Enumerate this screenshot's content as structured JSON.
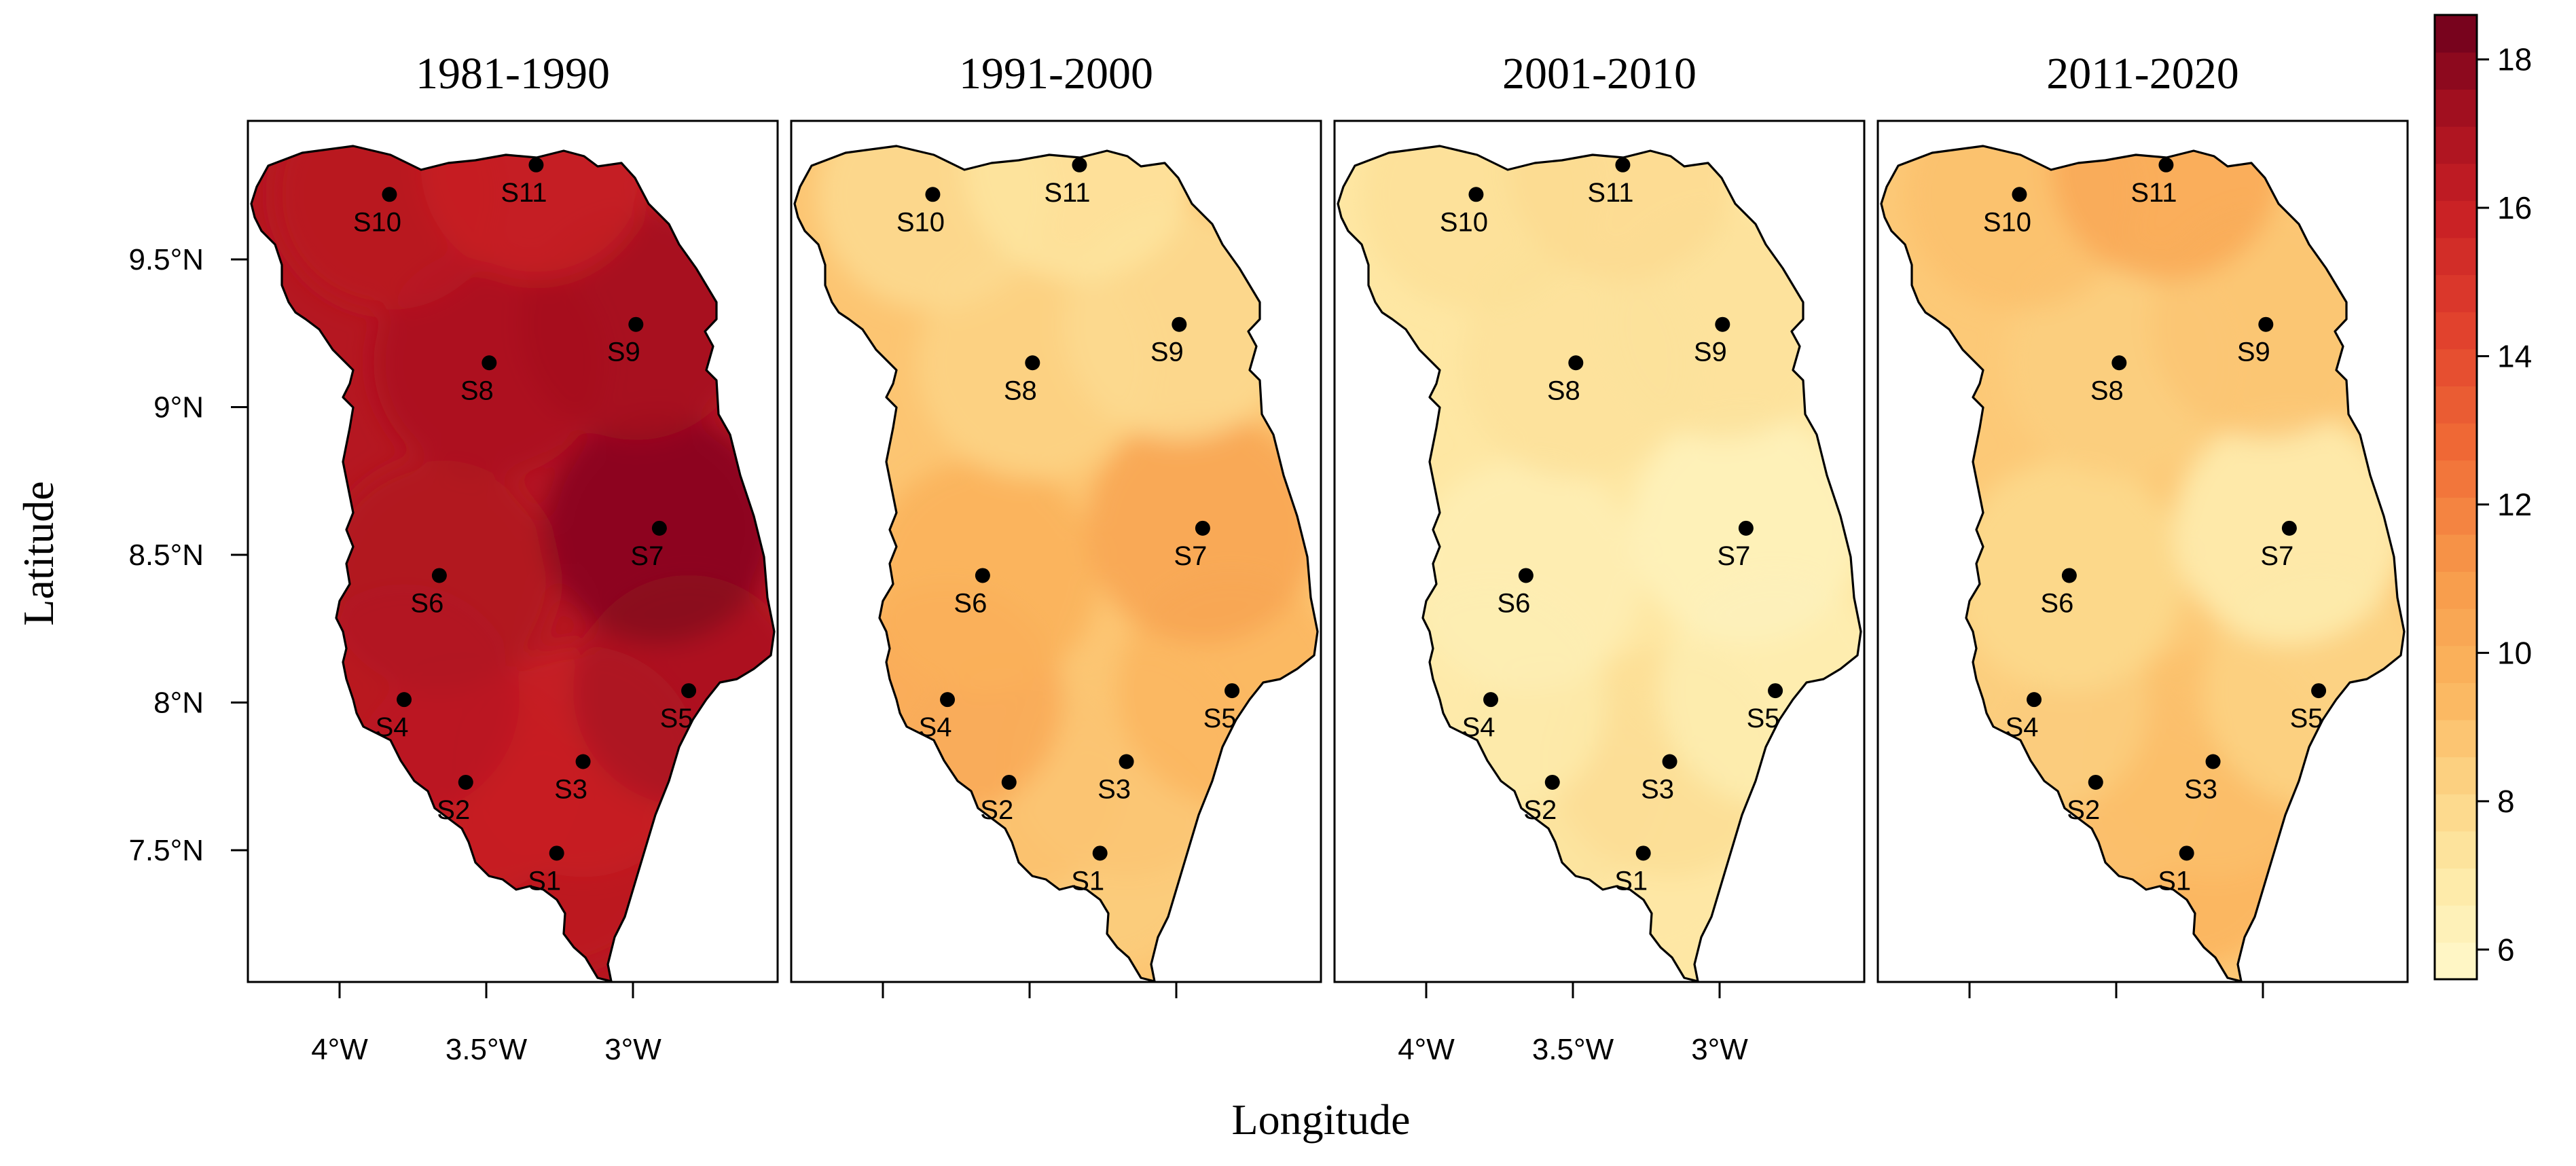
{
  "figure": {
    "xlabel": "Longitude",
    "ylabel": "Latitude",
    "panel_titles": [
      "1981-1990",
      "1991-2000",
      "2001-2010",
      "2011-2020"
    ],
    "x_ticks": [
      "4°W",
      "3.5°W",
      "3°W"
    ],
    "y_ticks": [
      "9.5°N",
      "9°N",
      "8.5°N",
      "8°N",
      "7.5°N"
    ],
    "colorbar_ticks": [
      "6",
      "8",
      "10",
      "12",
      "14",
      "16",
      "18"
    ]
  },
  "chart_data": {
    "type": "heatmap",
    "title": "",
    "xlabel": "Longitude",
    "ylabel": "Latitude",
    "xlim": [
      -4.3,
      -2.5
    ],
    "ylim": [
      7.05,
      9.95
    ],
    "color_scale": {
      "range": [
        5.6,
        18.6
      ],
      "step": 0.5,
      "low_color": "#fff7c8",
      "mid_color": "#f7a64b",
      "high_color": "#7a0020"
    },
    "stations": [
      {
        "name": "S1",
        "lon": -3.26,
        "lat": 7.49
      },
      {
        "name": "S2",
        "lon": -3.57,
        "lat": 7.73
      },
      {
        "name": "S3",
        "lon": -3.17,
        "lat": 7.8
      },
      {
        "name": "S4",
        "lon": -3.78,
        "lat": 8.01
      },
      {
        "name": "S5",
        "lon": -2.81,
        "lat": 8.04
      },
      {
        "name": "S6",
        "lon": -3.66,
        "lat": 8.43
      },
      {
        "name": "S7",
        "lon": -2.91,
        "lat": 8.59
      },
      {
        "name": "S8",
        "lon": -3.49,
        "lat": 9.15
      },
      {
        "name": "S9",
        "lon": -2.99,
        "lat": 9.28
      },
      {
        "name": "S10",
        "lon": -3.83,
        "lat": 9.72
      },
      {
        "name": "S11",
        "lon": -3.33,
        "lat": 9.82
      }
    ],
    "panels": [
      {
        "title": "1981-1990",
        "values": [
          16.4,
          16.0,
          16.0,
          16.5,
          17.0,
          16.8,
          18.0,
          17.0,
          17.2,
          16.5,
          16.0
        ]
      },
      {
        "title": "1991-2000",
        "values": [
          8.5,
          9.0,
          8.8,
          10.2,
          9.5,
          9.8,
          10.5,
          8.2,
          7.8,
          7.8,
          7.2
        ]
      },
      {
        "title": "2001-2010",
        "values": [
          7.0,
          7.3,
          7.6,
          6.8,
          6.6,
          6.5,
          6.2,
          7.4,
          7.4,
          7.5,
          7.8
        ]
      },
      {
        "title": "2011-2020",
        "values": [
          9.6,
          9.0,
          9.1,
          8.4,
          8.2,
          7.9,
          6.6,
          8.4,
          8.8,
          9.0,
          10.2
        ]
      }
    ]
  }
}
